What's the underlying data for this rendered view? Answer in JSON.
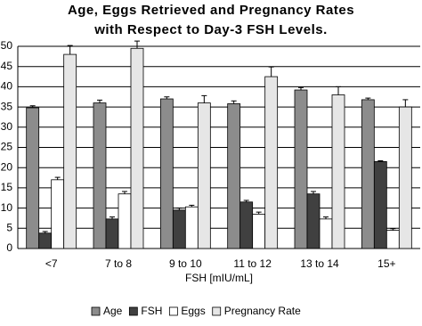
{
  "chart_data": {
    "type": "bar",
    "title": [
      "Age, Eggs Retrieved and Pregnancy Rates",
      "with Respect to Day-3 FSH Levels."
    ],
    "x_label": "FSH [mIU/mL]",
    "categories": [
      "<7",
      "7 to 8",
      "9 to 10",
      "11 to 12",
      "13 to 14",
      "15+"
    ],
    "series": [
      {
        "name": "Age",
        "color": "#8c8c8c",
        "values": [
          34.8,
          36,
          37,
          35.8,
          39.2,
          36.8
        ],
        "errors": [
          0.5,
          0.7,
          0.5,
          0.7,
          0.6,
          0.4
        ]
      },
      {
        "name": "FSH",
        "color": "#404040",
        "values": [
          3.8,
          7.3,
          9.5,
          11.5,
          13.5,
          21.5
        ],
        "errors": [
          0.4,
          0.5,
          0.5,
          0.4,
          0.6,
          0.2
        ]
      },
      {
        "name": "Eggs",
        "color": "#ffffff",
        "values": [
          17,
          13.5,
          10.3,
          8.5,
          7.3,
          4.5
        ],
        "errors": [
          0.6,
          0.6,
          0.4,
          0.5,
          0.5,
          0.4
        ]
      },
      {
        "name": "Pregnancy Rate",
        "color": "#e6e6e6",
        "values": [
          48,
          49.5,
          36,
          42.5,
          38,
          35
        ],
        "errors": [
          2.2,
          1.8,
          1.8,
          2.4,
          2.0,
          1.8
        ]
      }
    ],
    "ylim": [
      0,
      50
    ],
    "yticks": [
      0,
      5,
      10,
      15,
      20,
      25,
      30,
      35,
      40,
      45,
      50
    ],
    "grid": true
  }
}
